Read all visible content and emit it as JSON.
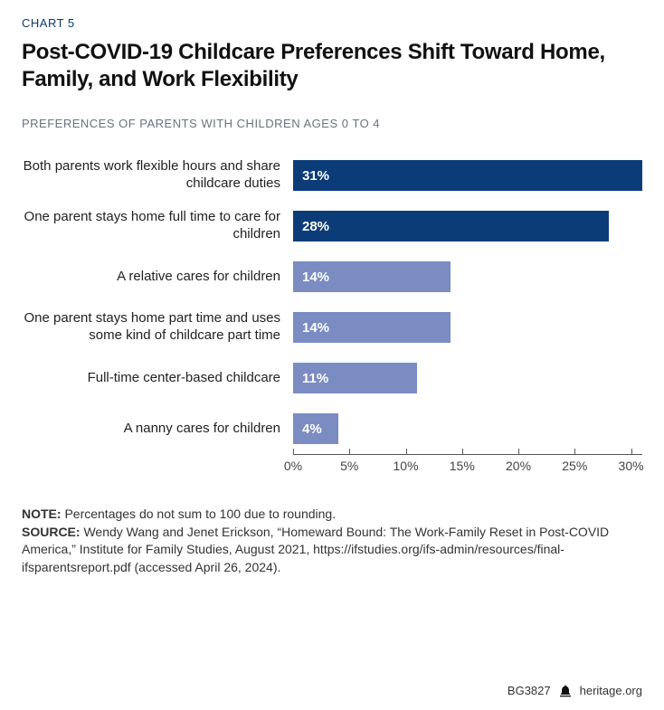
{
  "header": {
    "chart_label": "CHART 5",
    "title": "Post-COVID-19 Childcare Preferences Shift Toward Home, Family, and Work Flexibility",
    "subtitle": "PREFERENCES OF PARENTS WITH CHILDREN AGES 0 TO 4"
  },
  "chart": {
    "type": "bar-horizontal",
    "xmax_percent": 30,
    "bar_scale_max_percent": 31,
    "colors": {
      "primary": "#0c3c78",
      "secondary": "#7a8cc2",
      "axis": "#555555",
      "tick_text": "#444444",
      "bar_text": "#ffffff"
    },
    "rows": [
      {
        "label": "Both parents work flexible hours and share childcare duties",
        "value": 31,
        "value_label": "31%",
        "primary": true
      },
      {
        "label": "One parent stays home full time to care for children",
        "value": 28,
        "value_label": "28%",
        "primary": true
      },
      {
        "label": "A relative cares for children",
        "value": 14,
        "value_label": "14%",
        "primary": false
      },
      {
        "label": "One parent stays home part time and uses some kind of childcare part time",
        "value": 14,
        "value_label": "14%",
        "primary": false
      },
      {
        "label": "Full-time center-based childcare",
        "value": 11,
        "value_label": "11%",
        "primary": false
      },
      {
        "label": "A nanny cares for children",
        "value": 4,
        "value_label": "4%",
        "primary": false
      }
    ],
    "ticks": [
      {
        "pos": 0,
        "label": "0%"
      },
      {
        "pos": 5,
        "label": "5%"
      },
      {
        "pos": 10,
        "label": "10%"
      },
      {
        "pos": 15,
        "label": "15%"
      },
      {
        "pos": 20,
        "label": "20%"
      },
      {
        "pos": 25,
        "label": "25%"
      },
      {
        "pos": 30,
        "label": "30%"
      }
    ]
  },
  "notes": {
    "note_label": "NOTE:",
    "note_text": " Percentages do not sum to 100 due to rounding.",
    "source_label": "SOURCE:",
    "source_text": " Wendy Wang and Jenet Erickson, “Homeward Bound: The Work-Family Reset in Post-COVID America,” Institute for Family Studies, August 2021, https://ifstudies.org/ifs-admin/resources/final-ifsparentsreport.pdf (accessed April 26, 2024)."
  },
  "footer": {
    "ref": "BG3827",
    "site": "heritage.org"
  }
}
